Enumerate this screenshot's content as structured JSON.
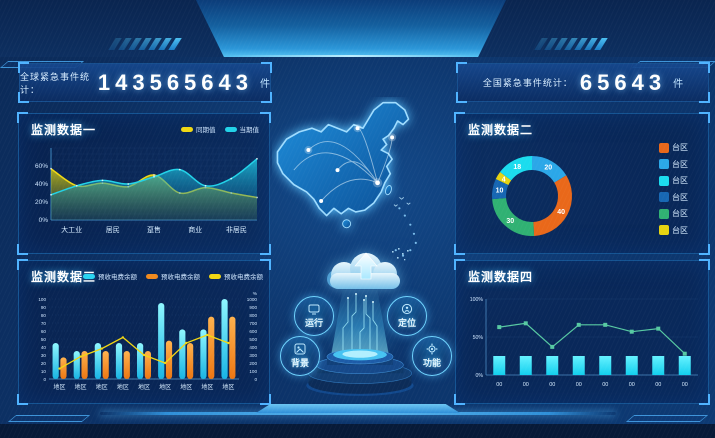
{
  "counters": {
    "left": {
      "label": "全球紧急事件统计：",
      "value": "143565643",
      "unit": "件"
    },
    "right": {
      "label": "全国紧急事件统计：",
      "value": "65643",
      "unit": "件"
    }
  },
  "panels": {
    "monitor1": {
      "title": "监测数据一"
    },
    "monitor2": {
      "title": "监测数据二"
    },
    "monitor3": {
      "title": "监测数据三"
    },
    "monitor4": {
      "title": "监测数据四"
    }
  },
  "badges": [
    {
      "label": "运行",
      "icon": "monitor-icon"
    },
    {
      "label": "定位",
      "icon": "locate-icon"
    },
    {
      "label": "背景",
      "icon": "background-icon"
    },
    {
      "label": "功能",
      "icon": "gear-icon"
    }
  ],
  "colors": {
    "accent": "#35aef5",
    "panel_border": "#155493",
    "bracket": "#4fb3ff",
    "background_dark": "#0a2a58"
  },
  "chart_data": [
    {
      "panel": "monitor1",
      "type": "area",
      "title": "监测数据一",
      "categories": [
        "大工业",
        "居民",
        "趸售",
        "商业",
        "非居民"
      ],
      "y_ticks": [
        "0%",
        "20%",
        "40%",
        "60%"
      ],
      "ylim": [
        0,
        80
      ],
      "grid": true,
      "legend_position": "top-right",
      "series": [
        {
          "name": "同期值",
          "color": "#f0d813",
          "samples": [
            57,
            38,
            41,
            37,
            50,
            30,
            36,
            30,
            25
          ]
        },
        {
          "name": "当期值",
          "color": "#22d2e8",
          "samples": [
            28,
            38,
            44,
            40,
            48,
            56,
            38,
            46,
            68
          ]
        }
      ],
      "note": "curve heights (percent) sampled at 9 even intervals across the x-axis"
    },
    {
      "panel": "monitor2",
      "type": "donut",
      "title": "监测数据二",
      "start_angle_deg": -90,
      "direction": "clockwise",
      "segments": [
        {
          "label": "台区",
          "value": 20,
          "color": "#2ba7e8"
        },
        {
          "label": "台区",
          "value": 40,
          "color": "#e9681a"
        },
        {
          "label": "台区",
          "value": 30,
          "color": "#30b173"
        },
        {
          "label": "台区",
          "value": 10,
          "color": "#1767b3"
        },
        {
          "label": "台区",
          "value": 4,
          "color": "#e7d411"
        },
        {
          "label": "台区",
          "value": 18,
          "color": "#1bdcee"
        }
      ],
      "legend": [
        {
          "label": "台区",
          "color": "#e9681a"
        },
        {
          "label": "台区",
          "color": "#2ba7e8"
        },
        {
          "label": "台区",
          "color": "#1bdcee"
        },
        {
          "label": "台区",
          "color": "#1767b3"
        },
        {
          "label": "台区",
          "color": "#30b173"
        },
        {
          "label": "台区",
          "color": "#e7d411"
        }
      ],
      "legend_position": "right"
    },
    {
      "panel": "monitor3",
      "type": "bar-line",
      "title": "监测数据三",
      "categories": [
        "地区",
        "地区",
        "地区",
        "地区",
        "地区",
        "地区",
        "地区",
        "地区",
        "地区"
      ],
      "left_axis": {
        "ticks": [
          0,
          10,
          20,
          30,
          40,
          50,
          60,
          70,
          80,
          90,
          100
        ]
      },
      "right_axis": {
        "ticks": [
          0,
          100,
          200,
          300,
          400,
          500,
          600,
          700,
          800,
          900,
          1000
        ],
        "unit": "%"
      },
      "series": [
        {
          "name": "预收电费余额",
          "type": "bar",
          "color": "#29d5f2",
          "values": [
            45,
            35,
            45,
            45,
            45,
            95,
            62,
            62,
            100
          ]
        },
        {
          "name": "预收电费余额",
          "type": "bar",
          "color": "#f08a1e",
          "values": [
            27,
            35,
            35,
            35,
            35,
            48,
            45,
            78,
            78
          ]
        },
        {
          "name": "预收电费余额",
          "type": "line",
          "color": "#f2d713",
          "values": [
            13,
            28,
            38,
            52,
            30,
            20,
            45,
            55,
            45
          ]
        }
      ]
    },
    {
      "panel": "monitor4",
      "type": "bar-line",
      "title": "监测数据四",
      "categories": [
        "00",
        "00",
        "00",
        "00",
        "00",
        "00",
        "00",
        "00"
      ],
      "y_ticks": [
        "0%",
        "50%",
        "100%"
      ],
      "ylim": [
        0,
        100
      ],
      "series": [
        {
          "name": "bar",
          "type": "bar",
          "color": "#1fe4f6",
          "values": [
            25,
            25,
            25,
            25,
            25,
            25,
            25,
            25
          ]
        },
        {
          "name": "line",
          "type": "line",
          "color": "#57c9a2",
          "values": [
            63,
            68,
            37,
            66,
            66,
            57,
            61,
            28
          ]
        }
      ]
    }
  ]
}
